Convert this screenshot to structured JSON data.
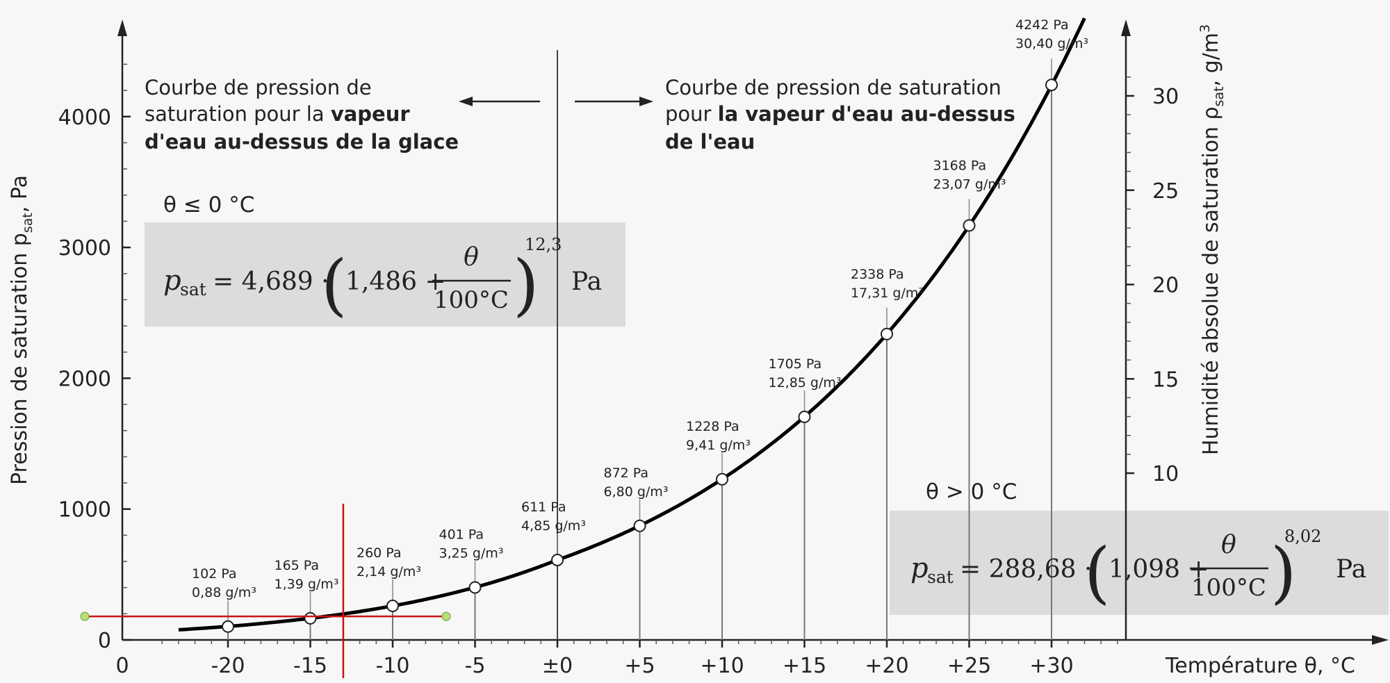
{
  "chart_data": {
    "type": "line",
    "x_ticks": [
      "0",
      "-20",
      "-15",
      "-10",
      "-5",
      "±0",
      "+5",
      "+10",
      "+15",
      "+20",
      "+25",
      "+30"
    ],
    "y_left_ticks": [
      "0",
      "1000",
      "2000",
      "3000",
      "4000"
    ],
    "y_right_ticks": [
      "10",
      "15",
      "20",
      "25",
      "30"
    ],
    "xlabel": "Température θ, °C",
    "ylabel_left_main": "Pression de saturation p",
    "ylabel_left_sub": "sat",
    "ylabel_left_unit": ", Pa",
    "ylabel_right_main": "Humidité absolue de saturation ρ",
    "ylabel_right_sub": "sat",
    "ylabel_right_unit": ", g/m",
    "ylabel_right_sup": "3",
    "xlim": [
      -25,
      35
    ],
    "ylim_left": [
      0,
      4500
    ],
    "points": [
      {
        "x": -20,
        "y": 102,
        "pa": "102 Pa",
        "gm": "0,88 g/m³"
      },
      {
        "x": -15,
        "y": 165,
        "pa": "165 Pa",
        "gm": "1,39 g/m³"
      },
      {
        "x": -10,
        "y": 260,
        "pa": "260 Pa",
        "gm": "2,14 g/m³"
      },
      {
        "x": -5,
        "y": 401,
        "pa": "401 Pa",
        "gm": "3,25 g/m³"
      },
      {
        "x": 0,
        "y": 611,
        "pa": "611 Pa",
        "gm": "4,85 g/m³"
      },
      {
        "x": 5,
        "y": 872,
        "pa": "872 Pa",
        "gm": "6,80 g/m³"
      },
      {
        "x": 10,
        "y": 1228,
        "pa": "1228 Pa",
        "gm": "9,41 g/m³"
      },
      {
        "x": 15,
        "y": 1705,
        "pa": "1705 Pa",
        "gm": "12,85 g/m³"
      },
      {
        "x": 20,
        "y": 2338,
        "pa": "2338 Pa",
        "gm": "17,31 g/m³"
      },
      {
        "x": 25,
        "y": 3168,
        "pa": "3168 Pa",
        "gm": "23,07 g/m³"
      },
      {
        "x": 30,
        "y": 4242,
        "pa": "4242 Pa",
        "gm": "30,40 g/m³"
      }
    ],
    "curve_range": [
      -23,
      33
    ]
  },
  "notes": {
    "ice_line1": "Courbe de pression de",
    "ice_line2_normal": "saturation pour la ",
    "ice_line2_bold": "vapeur",
    "ice_line3_bold": "d'eau au-dessus de la glace",
    "water_line1": "Courbe de pression de saturation",
    "water_line2_normal": "pour ",
    "water_line2_bold": "la vapeur d'eau au-dessus",
    "water_line3_bold": "de l'eau"
  },
  "formula_ice": {
    "condition": "θ ≤ 0 °C",
    "p": "p",
    "sub": "sat",
    "eq": "= 4,689 ·",
    "base": "1,486 +",
    "num": "θ",
    "den": "100°C",
    "exp": "12,3",
    "unit": "Pa"
  },
  "formula_water": {
    "condition": "θ > 0 °C",
    "p": "p",
    "sub": "sat",
    "eq": "= 288,68 ·",
    "base": "1,098 +",
    "num": "θ",
    "den": "100°C",
    "exp": "8,02",
    "unit": "Pa"
  },
  "colors": {
    "curve": "#000000",
    "marker_line": "#cc1111",
    "handle": "#b6e07a",
    "formula_box": "#dcdcdc"
  },
  "marker": {
    "x": -13,
    "y": 180
  }
}
